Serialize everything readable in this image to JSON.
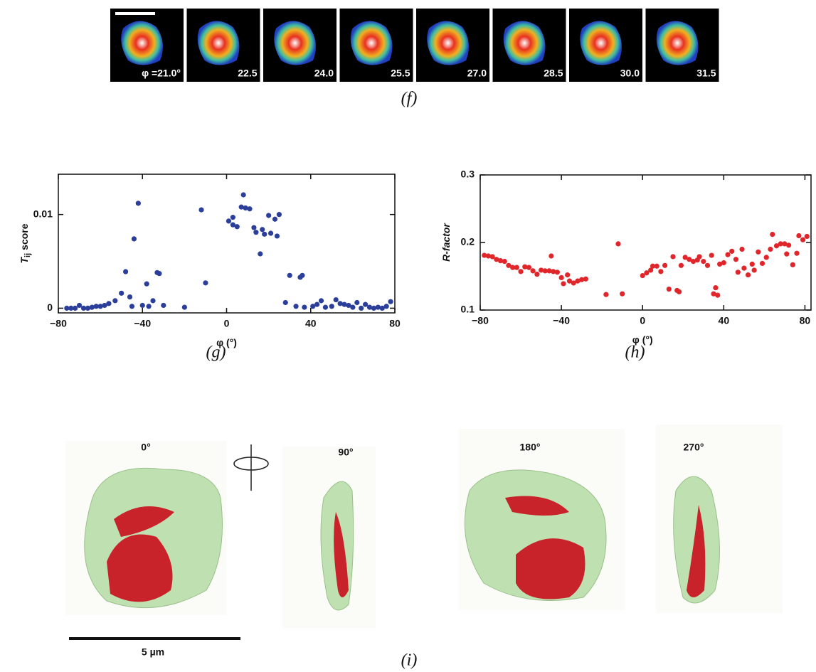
{
  "panel_f": {
    "frame_labels": [
      "φ =21.0°",
      "22.5",
      "24.0",
      "25.5",
      "27.0",
      "28.5",
      "30.0",
      "31.5"
    ],
    "caption": "(f)"
  },
  "chart_data": [
    {
      "type": "scatter",
      "caption": "(g)",
      "x_label": "φ (°)",
      "y_label": {
        "main": "T",
        "sub": "ij",
        "rest": "score"
      },
      "color": "#2b3f9a",
      "xlim": [
        -80,
        80
      ],
      "xticks": [
        {
          "value": -80,
          "label": "−80"
        },
        {
          "value": -40,
          "label": "−40"
        },
        0,
        40,
        80
      ],
      "ylim": [
        -0.0005,
        0.0143
      ],
      "yticks": [
        0,
        0.01
      ],
      "x": [
        -76,
        -74,
        -72,
        -70,
        -68,
        -66,
        -64,
        -62,
        -60,
        -58,
        -56,
        -53,
        -50,
        -48,
        -46,
        -45,
        -44,
        -42,
        -40,
        -38,
        -37,
        -35,
        -33,
        -32,
        -30,
        -20,
        -12,
        -10,
        1,
        3,
        3,
        5,
        7,
        8,
        9,
        11,
        13,
        14,
        16,
        17,
        18,
        20,
        21,
        23,
        24,
        25,
        28,
        30,
        33,
        35,
        36,
        37,
        41,
        43,
        45,
        47,
        50,
        52,
        54,
        56,
        58,
        60,
        62,
        64,
        66,
        68,
        70,
        72,
        74,
        76,
        78
      ],
      "values": [
        0,
        0,
        0,
        0.0003,
        0,
        0,
        0.0001,
        0.0002,
        0.0002,
        0.0003,
        0.0005,
        0.0008,
        0.0016,
        0.0039,
        0.0012,
        0.0002,
        0.0074,
        0.0112,
        0.0003,
        0.0026,
        0.0002,
        0.0008,
        0.0038,
        0.0037,
        0.0003,
        0.0001,
        0.0105,
        0.0027,
        0.0093,
        0.0097,
        0.0089,
        0.0087,
        0.0108,
        0.0121,
        0.0107,
        0.0106,
        0.0086,
        0.0081,
        0.0058,
        0.0084,
        0.0079,
        0.0099,
        0.008,
        0.0095,
        0.0077,
        0.01,
        0.0006,
        0.0035,
        0.0002,
        0.0033,
        0.0035,
        0.0001,
        0.0002,
        0.0004,
        0.0008,
        0.0001,
        0.0002,
        0.0009,
        0.0005,
        0.0004,
        0.0003,
        0.0001,
        0.0006,
        0,
        0.0004,
        0.0001,
        0,
        0.0001,
        0,
        0.0002,
        0.0007
      ]
    },
    {
      "type": "scatter",
      "caption": "(h)",
      "x_label": "φ (°)",
      "y_label": {
        "main": "R-factor"
      },
      "color": "#e0262b",
      "xlim": [
        -80,
        83
      ],
      "xticks": [
        {
          "value": -80,
          "label": "−80"
        },
        {
          "value": -40,
          "label": "−40"
        },
        0,
        40,
        80
      ],
      "ylim": [
        0.1,
        0.3
      ],
      "yticks": [
        0.1,
        0.2,
        0.3
      ],
      "x": [
        -78,
        -76,
        -74,
        -72,
        -70,
        -68,
        -66,
        -64,
        -62,
        -60,
        -58,
        -56,
        -54,
        -52,
        -50,
        -48,
        -46,
        -45,
        -44,
        -42,
        -40,
        -39,
        -37,
        -36,
        -34,
        -32,
        -30,
        -28,
        -18,
        -12,
        -10,
        0,
        2,
        4,
        5,
        7,
        9,
        11,
        13,
        15,
        17,
        18,
        19,
        21,
        23,
        25,
        27,
        28,
        30,
        32,
        34,
        35,
        36,
        37,
        38,
        40,
        42,
        44,
        46,
        47,
        49,
        50,
        52,
        54,
        55,
        57,
        59,
        61,
        63,
        64,
        66,
        68,
        70,
        71,
        72,
        74,
        76,
        77,
        79,
        81
      ],
      "values": [
        0.181,
        0.18,
        0.179,
        0.175,
        0.173,
        0.172,
        0.166,
        0.163,
        0.163,
        0.157,
        0.164,
        0.163,
        0.158,
        0.153,
        0.159,
        0.158,
        0.158,
        0.18,
        0.157,
        0.156,
        0.148,
        0.139,
        0.152,
        0.143,
        0.14,
        0.143,
        0.145,
        0.146,
        0.123,
        0.198,
        0.124,
        0.151,
        0.155,
        0.159,
        0.165,
        0.165,
        0.157,
        0.166,
        0.131,
        0.179,
        0.129,
        0.127,
        0.166,
        0.178,
        0.175,
        0.172,
        0.174,
        0.179,
        0.172,
        0.166,
        0.181,
        0.124,
        0.133,
        0.122,
        0.168,
        0.17,
        0.182,
        0.187,
        0.175,
        0.156,
        0.19,
        0.162,
        0.152,
        0.168,
        0.159,
        0.186,
        0.169,
        0.178,
        0.19,
        0.212,
        0.195,
        0.198,
        0.198,
        0.183,
        0.196,
        0.167,
        0.184,
        0.21,
        0.204,
        0.209
      ]
    }
  ],
  "panel_i": {
    "views": [
      "0°",
      "90°",
      "180°",
      "270°"
    ],
    "scale_bar": "5 µm",
    "caption": "(i)"
  }
}
